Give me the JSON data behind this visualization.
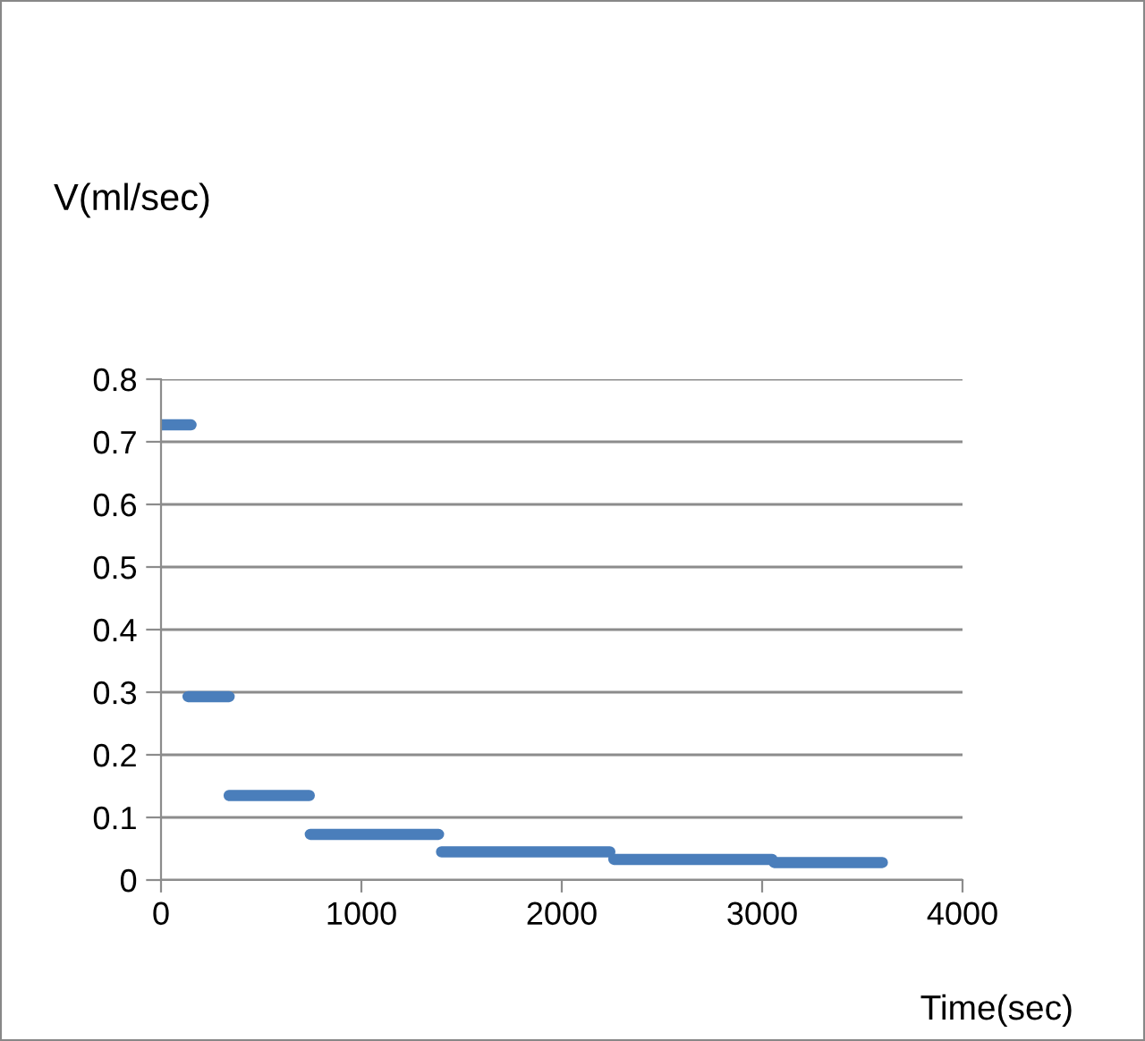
{
  "chart_data": {
    "type": "line",
    "ylabel": "V(ml/sec)",
    "xlabel": "Time(sec)",
    "series": [
      {
        "color": "#4a7ebb",
        "x": [
          0,
          150,
          null,
          135,
          340,
          null,
          340,
          740,
          null,
          745,
          1385,
          null,
          1400,
          2240,
          null,
          2260,
          3050,
          null,
          3060,
          3600
        ],
        "values": [
          0.727,
          0.727,
          null,
          0.293,
          0.293,
          null,
          0.135,
          0.135,
          null,
          0.073,
          0.073,
          null,
          0.045,
          0.045,
          null,
          0.033,
          0.033,
          null,
          0.028,
          0.028
        ]
      }
    ],
    "xlim": [
      0,
      4000
    ],
    "xticks": [
      0,
      1000,
      2000,
      3000,
      4000
    ],
    "ylim": [
      0,
      0.8
    ],
    "yticks": [
      {
        "value": 0,
        "label": "0"
      },
      0.1,
      0.2,
      0.3,
      0.4,
      0.5,
      0.6,
      0.7,
      0.8
    ],
    "grid": "y",
    "legend": false,
    "marker": "none",
    "line_style": "solid"
  }
}
